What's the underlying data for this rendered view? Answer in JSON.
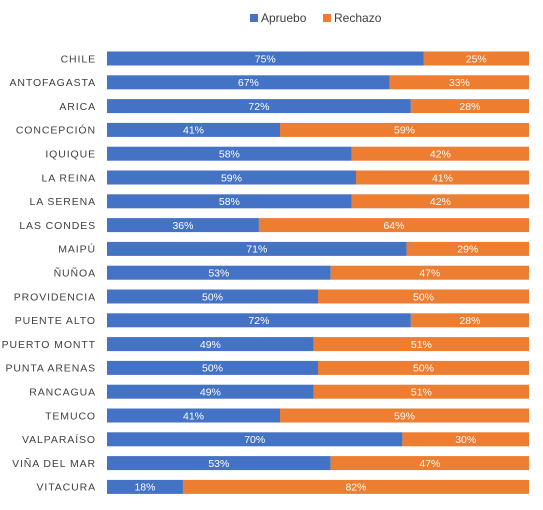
{
  "chart_data": {
    "type": "bar",
    "orientation": "horizontal",
    "stacked": "percent",
    "categories": [
      "CHILE",
      "ANTOFAGASTA",
      "ARICA",
      "CONCEPCIÓN",
      "IQUIQUE",
      "LA REINA",
      "LA SERENA",
      "LAS CONDES",
      "MAIPÚ",
      "ÑUÑOA",
      "PROVIDENCIA",
      "PUENTE ALTO",
      "PUERTO MONTT",
      "PUNTA ARENAS",
      "RANCAGUA",
      "TEMUCO",
      "VALPARAÍSO",
      "VIÑA DEL MAR",
      "VITACURA"
    ],
    "series": [
      {
        "name": "Apruebo",
        "color": "#4472C4",
        "values": [
          75,
          67,
          72,
          41,
          58,
          59,
          58,
          36,
          71,
          53,
          50,
          72,
          49,
          50,
          49,
          41,
          70,
          53,
          18
        ]
      },
      {
        "name": "Rechazo",
        "color": "#ED7D31",
        "values": [
          25,
          33,
          28,
          59,
          42,
          41,
          42,
          64,
          29,
          47,
          50,
          28,
          51,
          50,
          51,
          59,
          30,
          47,
          82
        ]
      }
    ],
    "value_suffix": "%",
    "xlim": [
      0,
      100
    ],
    "title": "",
    "xlabel": "",
    "ylabel": "",
    "legend": "top",
    "grid": false
  }
}
